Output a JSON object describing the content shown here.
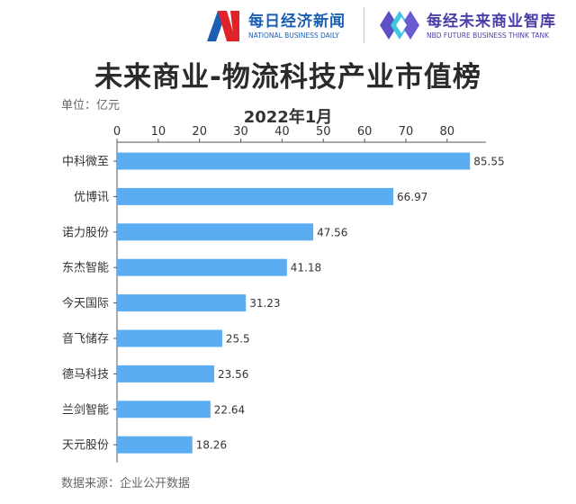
{
  "header": {
    "logo1_cn": "每日经济新闻",
    "logo1_en": "NATIONAL BUSINESS DAILY",
    "logo2_cn": "每经未来商业智库",
    "logo2_en": "NBD FUTURE BUSINESS THINK TANK"
  },
  "colors": {
    "bar": "#5badf2",
    "axis": "#555555",
    "text": "#333333"
  },
  "unit_label": "单位：亿元",
  "source_label": "数据来源：企业公开数据",
  "chart_data": {
    "type": "bar",
    "orientation": "horizontal",
    "title": "未来商业-物流科技产业市值榜",
    "subtitle": "2022年1月",
    "categories": [
      "中科微至",
      "优博讯",
      "诺力股份",
      "东杰智能",
      "今天国际",
      "音飞储存",
      "德马科技",
      "兰剑智能",
      "天元股份"
    ],
    "values": [
      85.55,
      66.97,
      47.56,
      41.18,
      31.23,
      25.5,
      23.56,
      22.64,
      18.26
    ],
    "value_labels": [
      "85.55",
      "66.97",
      "47.56",
      "41.18",
      "31.23",
      "25.5",
      "23.56",
      "22.64",
      "18.26"
    ],
    "xlim": [
      0,
      90
    ],
    "xticks": [
      0,
      10,
      20,
      30,
      40,
      50,
      60,
      70,
      80
    ],
    "xaxis_position": "top",
    "grid": false,
    "legend": "none"
  }
}
